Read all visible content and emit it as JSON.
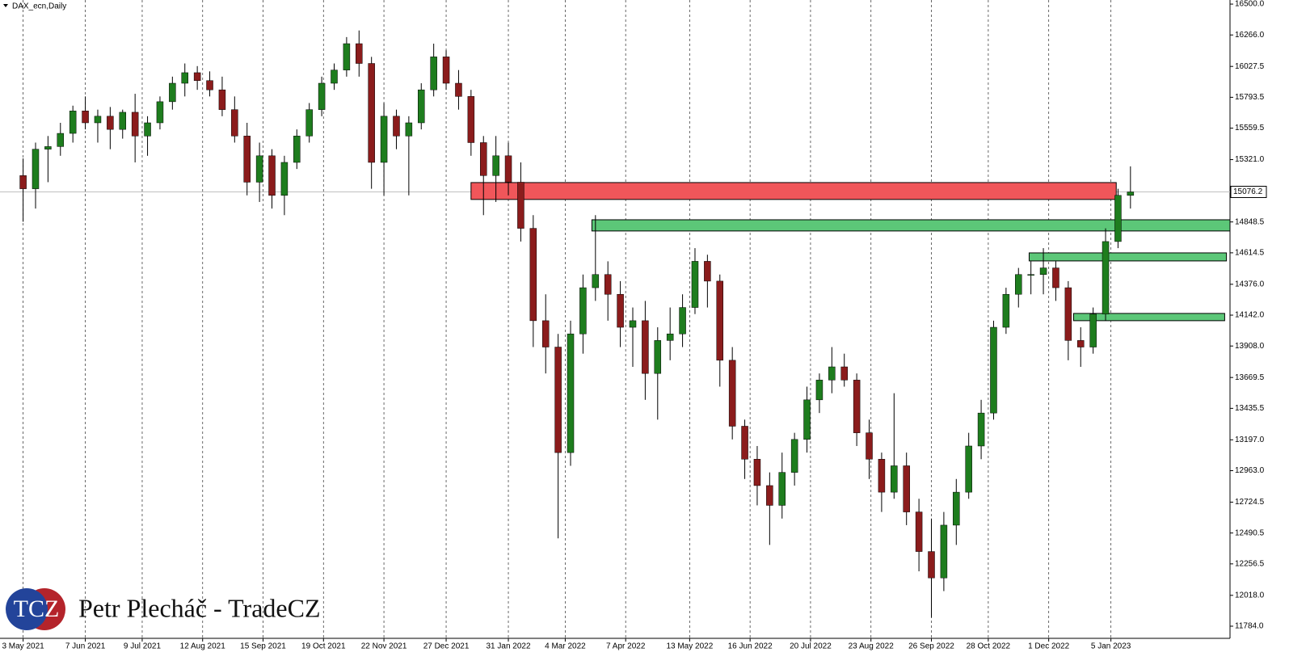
{
  "chart_data": {
    "type": "candlestick",
    "title": "DAX_ecn,Daily",
    "x": [
      "2021-05-03",
      "2021-05-10",
      "2021-05-17",
      "2021-05-24",
      "2021-05-31",
      "2021-06-07",
      "2021-06-14",
      "2021-06-21",
      "2021-06-28",
      "2021-07-05",
      "2021-07-12",
      "2021-07-19",
      "2021-07-26",
      "2021-08-02",
      "2021-08-09",
      "2021-08-16",
      "2021-08-23",
      "2021-08-30",
      "2021-09-06",
      "2021-09-13",
      "2021-09-20",
      "2021-09-27",
      "2021-10-04",
      "2021-10-11",
      "2021-10-18",
      "2021-10-25",
      "2021-11-01",
      "2021-11-08",
      "2021-11-15",
      "2021-11-22",
      "2021-11-29",
      "2021-12-06",
      "2021-12-13",
      "2021-12-20",
      "2021-12-27",
      "2022-01-03",
      "2022-01-10",
      "2022-01-17",
      "2022-01-24",
      "2022-01-31",
      "2022-02-07",
      "2022-02-14",
      "2022-02-21",
      "2022-02-28",
      "2022-03-07",
      "2022-03-14",
      "2022-03-21",
      "2022-03-28",
      "2022-04-04",
      "2022-04-11",
      "2022-04-18",
      "2022-04-25",
      "2022-05-02",
      "2022-05-09",
      "2022-05-16",
      "2022-05-23",
      "2022-05-30",
      "2022-06-06",
      "2022-06-13",
      "2022-06-20",
      "2022-06-27",
      "2022-07-04",
      "2022-07-11",
      "2022-07-18",
      "2022-07-25",
      "2022-08-01",
      "2022-08-08",
      "2022-08-15",
      "2022-08-22",
      "2022-08-29",
      "2022-09-05",
      "2022-09-12",
      "2022-09-19",
      "2022-09-26",
      "2022-10-03",
      "2022-10-10",
      "2022-10-17",
      "2022-10-24",
      "2022-10-31",
      "2022-11-07",
      "2022-11-14",
      "2022-11-21",
      "2022-11-28",
      "2022-12-05",
      "2022-12-12",
      "2022-12-19",
      "2022-12-26",
      "2023-01-02",
      "2023-01-09",
      "2023-01-16"
    ],
    "open": [
      15200,
      15100,
      15400,
      15420,
      15520,
      15690,
      15600,
      15650,
      15550,
      15680,
      15500,
      15600,
      15760,
      15900,
      15980,
      15920,
      15850,
      15700,
      15500,
      15150,
      15350,
      15050,
      15300,
      15500,
      15700,
      15900,
      16000,
      16200,
      16050,
      15300,
      15650,
      15500,
      15600,
      15850,
      16100,
      15900,
      15800,
      15450,
      15200,
      15350,
      15150,
      14800,
      14100,
      13900,
      13100,
      14000,
      14350,
      14450,
      14300,
      14050,
      14100,
      13700,
      13950,
      14000,
      14200,
      14550,
      14400,
      13800,
      13300,
      13050,
      12850,
      12700,
      12950,
      13200,
      13500,
      13650,
      13750,
      13650,
      13250,
      13050,
      12800,
      13000,
      12650,
      12350,
      12150,
      12550,
      12800,
      13150,
      13400,
      14050,
      14300,
      14450,
      14450,
      14500,
      14350,
      13950,
      13900,
      14150,
      14700,
      15050
    ],
    "high": [
      15330,
      15450,
      15500,
      15600,
      15730,
      15800,
      15700,
      15720,
      15700,
      15820,
      15650,
      15800,
      15950,
      16050,
      16030,
      15990,
      15950,
      15800,
      15600,
      15450,
      15400,
      15350,
      15550,
      15750,
      15950,
      16050,
      16250,
      16300,
      16100,
      15750,
      15700,
      15650,
      15900,
      16200,
      16150,
      16000,
      15850,
      15500,
      15500,
      15450,
      15300,
      14900,
      14300,
      14000,
      14100,
      14450,
      14900,
      14550,
      14400,
      14200,
      14250,
      14050,
      14200,
      14300,
      14650,
      14600,
      14450,
      13900,
      13350,
      13150,
      12950,
      13100,
      13250,
      13600,
      13700,
      13900,
      13850,
      13700,
      13350,
      13100,
      13550,
      13100,
      12750,
      12600,
      12650,
      12900,
      13250,
      13500,
      14100,
      14350,
      14500,
      14550,
      14650,
      14550,
      14400,
      14050,
      14200,
      14800,
      15100,
      15270
    ],
    "low": [
      14850,
      14950,
      15150,
      15350,
      15450,
      15550,
      15450,
      15400,
      15480,
      15300,
      15350,
      15550,
      15700,
      15800,
      15850,
      15800,
      15650,
      15450,
      15050,
      15000,
      14950,
      14900,
      15250,
      15450,
      15650,
      15850,
      15950,
      15950,
      15100,
      15050,
      15400,
      15050,
      15550,
      15800,
      15850,
      15700,
      15350,
      14900,
      15000,
      15050,
      14700,
      13900,
      13700,
      12450,
      13000,
      13850,
      14250,
      14100,
      13900,
      13750,
      13500,
      13350,
      13800,
      13900,
      14150,
      14200,
      13600,
      13200,
      12900,
      12700,
      12400,
      12600,
      12850,
      13100,
      13400,
      13550,
      13600,
      13150,
      12900,
      12650,
      12750,
      12550,
      12200,
      11850,
      12050,
      12400,
      12750,
      13050,
      13350,
      14000,
      14200,
      14300,
      14300,
      14250,
      13800,
      13750,
      13850,
      14100,
      14650,
      14950
    ],
    "close": [
      15100,
      15400,
      15420,
      15520,
      15690,
      15600,
      15650,
      15550,
      15680,
      15500,
      15600,
      15760,
      15900,
      15980,
      15920,
      15850,
      15700,
      15500,
      15150,
      15350,
      15050,
      15300,
      15500,
      15700,
      15900,
      16000,
      16200,
      16050,
      15300,
      15650,
      15500,
      15600,
      15850,
      16100,
      15900,
      15800,
      15450,
      15200,
      15350,
      15150,
      14800,
      14100,
      13900,
      13100,
      14000,
      14350,
      14450,
      14300,
      14050,
      14100,
      13700,
      13950,
      14000,
      14200,
      14550,
      14400,
      13800,
      13300,
      13050,
      12850,
      12700,
      12950,
      13200,
      13500,
      13650,
      13750,
      13650,
      13250,
      13050,
      12800,
      13000,
      12650,
      12350,
      12150,
      12550,
      12800,
      13150,
      13400,
      14050,
      14300,
      14450,
      14450,
      14500,
      14350,
      13950,
      13900,
      14150,
      14700,
      15050,
      15076.2
    ],
    "up_color": "#1e7d1e",
    "down_color": "#8b1c1c",
    "wick_color": "#000000",
    "xlim": [
      "2021-04-20",
      "2023-03-13"
    ],
    "xticks": [
      {
        "value": "2021-05-03",
        "label": "3 May 2021"
      },
      {
        "value": "2021-06-07",
        "label": "7 Jun 2021"
      },
      {
        "value": "2021-07-09",
        "label": "9 Jul 2021"
      },
      {
        "value": "2021-08-12",
        "label": "12 Aug 2021"
      },
      {
        "value": "2021-09-15",
        "label": "15 Sep 2021"
      },
      {
        "value": "2021-10-19",
        "label": "19 Oct 2021"
      },
      {
        "value": "2021-11-22",
        "label": "22 Nov 2021"
      },
      {
        "value": "2021-12-27",
        "label": "27 Dec 2021"
      },
      {
        "value": "2022-01-31",
        "label": "31 Jan 2022"
      },
      {
        "value": "2022-03-04",
        "label": "4 Mar 2022"
      },
      {
        "value": "2022-04-07",
        "label": "7 Apr 2022"
      },
      {
        "value": "2022-05-13",
        "label": "13 May 2022"
      },
      {
        "value": "2022-06-16",
        "label": "16 Jun 2022"
      },
      {
        "value": "2022-07-20",
        "label": "20 Jul 2022"
      },
      {
        "value": "2022-08-23",
        "label": "23 Aug 2022"
      },
      {
        "value": "2022-09-26",
        "label": "26 Sep 2022"
      },
      {
        "value": "2022-10-28",
        "label": "28 Oct 2022"
      },
      {
        "value": "2022-12-01",
        "label": "1 Dec 2022"
      },
      {
        "value": "2023-01-05",
        "label": "5 Jan 2023"
      }
    ],
    "ylim": [
      11692,
      16531
    ],
    "yticks": [
      {
        "value": 16500,
        "label": "16500.0"
      },
      {
        "value": 16266,
        "label": "16266.0"
      },
      {
        "value": 16027.5,
        "label": "16027.5"
      },
      {
        "value": 15793.5,
        "label": "15793.5"
      },
      {
        "value": 15559.5,
        "label": "15559.5"
      },
      {
        "value": 15321,
        "label": "15321.0"
      },
      {
        "value": 14848.5,
        "label": "14848.5"
      },
      {
        "value": 14614.5,
        "label": "14614.5"
      },
      {
        "value": 14376,
        "label": "14376.0"
      },
      {
        "value": 14142,
        "label": "14142.0"
      },
      {
        "value": 13908,
        "label": "13908.0"
      },
      {
        "value": 13669.5,
        "label": "13669.5"
      },
      {
        "value": 13435.5,
        "label": "13435.5"
      },
      {
        "value": 13197,
        "label": "13197.0"
      },
      {
        "value": 12963,
        "label": "12963.0"
      },
      {
        "value": 12724.5,
        "label": "12724.5"
      },
      {
        "value": 12490.5,
        "label": "12490.5"
      },
      {
        "value": 12256.5,
        "label": "12256.5"
      },
      {
        "value": 12018,
        "label": "12018.0"
      },
      {
        "value": 11784,
        "label": "11784.0"
      }
    ],
    "current_price": 15076.2,
    "grid": "vertical",
    "zones": [
      {
        "x": [
          "2022-01-10",
          "2023-01-08"
        ],
        "y": [
          15019,
          15147
        ],
        "color": "#f0565a"
      },
      {
        "x": [
          "2022-03-19",
          "2023-03-13"
        ],
        "y": [
          14780,
          14865
        ],
        "color": "#5cc778"
      },
      {
        "x": [
          "2022-11-20",
          "2023-03-11"
        ],
        "y": [
          14553,
          14614
        ],
        "color": "#5cc778"
      },
      {
        "x": [
          "2022-12-15",
          "2023-03-10"
        ],
        "y": [
          14100,
          14155
        ],
        "color": "#5cc778"
      }
    ]
  },
  "watermark": {
    "logo": "TCZ",
    "text": "Petr Plecháč - TradeCZ"
  }
}
